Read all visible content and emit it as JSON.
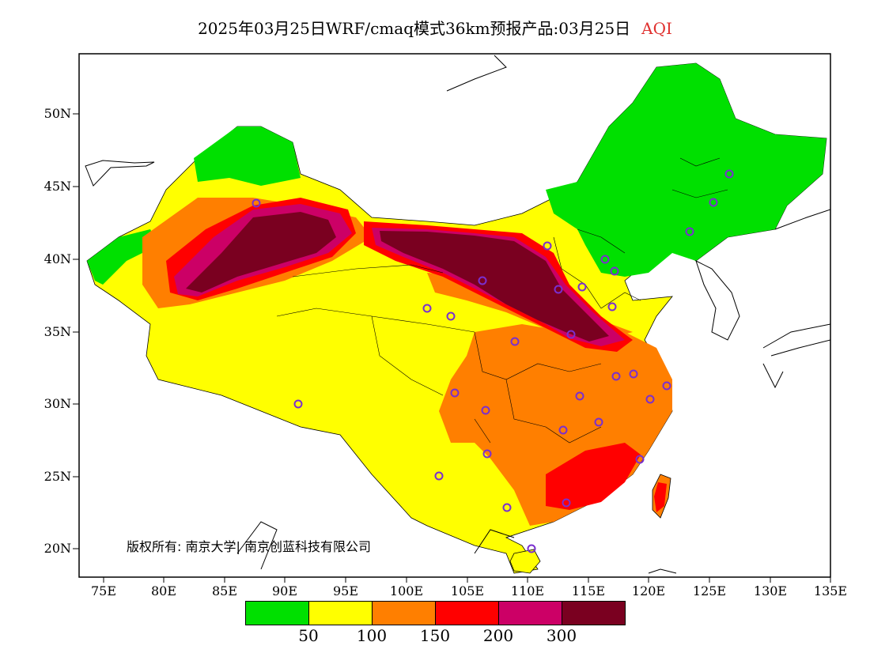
{
  "title": {
    "main": "2025年03月25日WRF/cmaq模式36km预报产品:03月25日",
    "variable": "AQI"
  },
  "axes": {
    "lat_labels": [
      "50N",
      "45N",
      "40N",
      "35N",
      "30N",
      "25N",
      "20N"
    ],
    "lon_labels": [
      "75E",
      "80E",
      "85E",
      "90E",
      "95E",
      "100E",
      "105E",
      "110E",
      "115E",
      "120E",
      "125E",
      "130E",
      "135E"
    ]
  },
  "copyright": "版权所有: 南京大学| 南京创蓝科技有限公司",
  "legend": {
    "colors": [
      "#00e000",
      "#ffff00",
      "#ff7f00",
      "#ff0000",
      "#cc0066",
      "#7a0020"
    ],
    "labels": [
      "50",
      "100",
      "150",
      "200",
      "300"
    ]
  }
}
